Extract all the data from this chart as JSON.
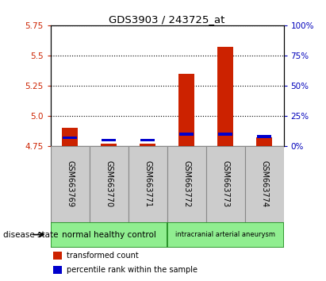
{
  "title": "GDS3903 / 243725_at",
  "samples": [
    "GSM663769",
    "GSM663770",
    "GSM663771",
    "GSM663772",
    "GSM663773",
    "GSM663774"
  ],
  "red_values": [
    4.9,
    4.77,
    4.77,
    5.35,
    5.57,
    4.82
  ],
  "blue_values_pct": [
    7,
    5,
    5,
    10,
    10,
    8
  ],
  "y_min": 4.75,
  "y_max": 5.75,
  "y_ticks_left": [
    4.75,
    5.0,
    5.25,
    5.5,
    5.75
  ],
  "y_ticks_right": [
    0,
    25,
    50,
    75,
    100
  ],
  "right_y_labels": [
    "0%",
    "25%",
    "50%",
    "75%",
    "100%"
  ],
  "bar_base": 4.75,
  "group1_label": "normal healthy control",
  "group2_label": "intracranial arterial aneurysm",
  "group_color": "#90EE90",
  "group_edge_color": "#228B22",
  "disease_label": "disease state",
  "legend_red": "transformed count",
  "legend_blue": "percentile rank within the sample",
  "red_color": "#cc2200",
  "blue_color": "#0000cc",
  "bar_width": 0.4,
  "sample_bg_color": "#cccccc",
  "sample_edge_color": "#888888",
  "left_tick_color": "#cc2200",
  "right_tick_color": "#0000bb"
}
